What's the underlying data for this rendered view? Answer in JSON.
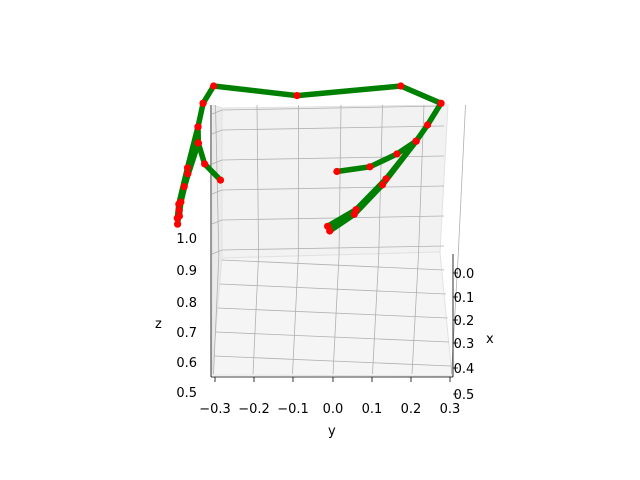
{
  "chart_data": {
    "type": "3d-line",
    "xlabel": "x",
    "ylabel": "y",
    "zlabel": "z",
    "x_ticks": [
      "0.0",
      "0.1",
      "0.2",
      "0.3",
      "0.4",
      "0.5"
    ],
    "y_ticks": [
      "−0.3",
      "−0.2",
      "−0.1",
      "0.0",
      "0.1",
      "0.2",
      "0.3"
    ],
    "z_ticks": [
      "0.5",
      "0.6",
      "0.7",
      "0.8",
      "0.9",
      "1.0"
    ],
    "xlim": [
      0.0,
      0.5
    ],
    "ylim": [
      -0.3,
      0.3
    ],
    "zlim": [
      0.5,
      1.1
    ],
    "grid": true,
    "line_color": "#008000",
    "marker_color": "#ff0000",
    "segments": [
      {
        "points": [
          [
            0.05,
            -0.31,
            0.98
          ],
          [
            0.1,
            -0.26,
            1.05
          ],
          [
            0.2,
            0.0,
            1.06
          ],
          [
            0.1,
            0.22,
            1.05
          ],
          [
            0.05,
            0.3,
            0.98
          ]
        ]
      },
      {
        "points": [
          [
            0.05,
            -0.31,
            0.98
          ],
          [
            0.1,
            -0.3,
            0.93
          ],
          [
            0.12,
            -0.29,
            0.89
          ],
          [
            0.15,
            -0.26,
            0.84
          ],
          [
            0.17,
            -0.21,
            0.8
          ]
        ]
      },
      {
        "points": [
          [
            0.1,
            -0.3,
            0.93
          ],
          [
            0.18,
            -0.29,
            0.84
          ],
          [
            0.25,
            -0.28,
            0.76
          ],
          [
            0.28,
            -0.27,
            0.73
          ]
        ]
      },
      {
        "points": [
          [
            0.12,
            -0.29,
            0.89
          ],
          [
            0.2,
            -0.28,
            0.83
          ],
          [
            0.26,
            -0.27,
            0.77
          ],
          [
            0.29,
            -0.26,
            0.74
          ]
        ]
      },
      {
        "points": [
          [
            0.12,
            -0.29,
            0.89
          ],
          [
            0.22,
            -0.28,
            0.8
          ],
          [
            0.27,
            -0.27,
            0.75
          ],
          [
            0.3,
            -0.26,
            0.72
          ]
        ]
      },
      {
        "points": [
          [
            0.05,
            0.3,
            0.98
          ],
          [
            0.06,
            0.27,
            0.92
          ],
          [
            0.08,
            0.25,
            0.88
          ],
          [
            0.1,
            0.21,
            0.85
          ],
          [
            0.12,
            0.15,
            0.82
          ],
          [
            0.13,
            0.07,
            0.81
          ]
        ]
      },
      {
        "points": [
          [
            0.08,
            0.25,
            0.88
          ],
          [
            0.16,
            0.21,
            0.8
          ],
          [
            0.24,
            0.17,
            0.74
          ],
          [
            0.29,
            0.12,
            0.71
          ]
        ]
      },
      {
        "points": [
          [
            0.08,
            0.25,
            0.88
          ],
          [
            0.18,
            0.21,
            0.79
          ],
          [
            0.25,
            0.17,
            0.73
          ],
          [
            0.3,
            0.13,
            0.7
          ]
        ]
      }
    ]
  }
}
